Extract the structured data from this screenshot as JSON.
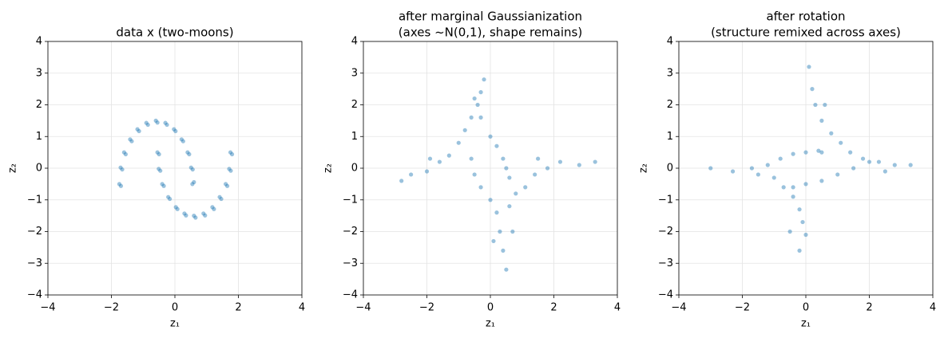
{
  "chart_data": [
    {
      "type": "scatter",
      "title": [
        "data x (two-moons)"
      ],
      "xlabel": "z₁",
      "ylabel": "z₂",
      "color": "#1f77b4",
      "grid": true,
      "xlim": [
        -4,
        4
      ],
      "ylim": [
        -4,
        4
      ],
      "xticks": [
        {
          "value": -4,
          "label": "−4"
        },
        {
          "value": -2,
          "label": "−2"
        },
        0,
        2,
        4
      ],
      "yticks": [
        {
          "value": -4,
          "label": "−4"
        },
        {
          "value": -3,
          "label": "−3"
        },
        {
          "value": -2,
          "label": "−2"
        },
        {
          "value": -1,
          "label": "−1"
        },
        0,
        1,
        2,
        3,
        4
      ],
      "x": [
        0.55,
        0.51,
        0.4,
        0.21,
        -0.03,
        -0.3,
        -0.6,
        -0.9,
        -1.18,
        -1.41,
        -1.6,
        -1.71,
        -1.75,
        0.6,
        0.56,
        0.45,
        0.26,
        0.02,
        -0.25,
        -0.55,
        -0.85,
        -1.13,
        -1.36,
        -1.55,
        -1.66,
        -1.7,
        -0.55,
        -0.51,
        -0.4,
        -0.21,
        0.03,
        0.3,
        0.6,
        0.9,
        1.18,
        1.41,
        1.6,
        1.71,
        1.75,
        -0.5,
        -0.46,
        -0.35,
        -0.16,
        0.08,
        0.35,
        0.65,
        0.95,
        1.23,
        1.46,
        1.65,
        1.76,
        1.8
      ],
      "y": [
        -0.5,
        0.02,
        0.5,
        0.91,
        1.23,
        1.43,
        1.5,
        1.43,
        1.23,
        0.91,
        0.5,
        0.02,
        -0.5,
        -0.44,
        -0.04,
        0.44,
        0.85,
        1.17,
        1.37,
        1.44,
        1.37,
        1.17,
        0.85,
        0.44,
        -0.04,
        -0.56,
        0.5,
        -0.02,
        -0.5,
        -0.91,
        -1.23,
        -1.43,
        -1.5,
        -1.43,
        -1.23,
        -0.91,
        -0.5,
        -0.02,
        0.5,
        0.44,
        -0.08,
        -0.56,
        -0.97,
        -1.29,
        -1.49,
        -1.56,
        -1.49,
        -1.29,
        -0.97,
        -0.56,
        -0.08,
        0.44
      ]
    },
    {
      "type": "scatter",
      "title": [
        "after marginal Gaussianization",
        "(axes ~N(0,1), shape remains)"
      ],
      "xlabel": "z₁",
      "ylabel": "z₂",
      "color": "#1f77b4",
      "grid": true,
      "xlim": [
        -4,
        4
      ],
      "ylim": [
        -4,
        4
      ],
      "xticks": [
        {
          "value": -4,
          "label": "−4"
        },
        {
          "value": -2,
          "label": "−2"
        },
        0,
        2,
        4
      ],
      "yticks": [
        {
          "value": -4,
          "label": "−4"
        },
        {
          "value": -3,
          "label": "−3"
        },
        {
          "value": -2,
          "label": "−2"
        },
        {
          "value": -1,
          "label": "−1"
        },
        0,
        1,
        2,
        3,
        4
      ],
      "x": [
        -2.5,
        -2.0,
        -1.6,
        -1.3,
        -1.0,
        -0.8,
        -0.6,
        -0.4,
        -0.3,
        -0.2,
        -0.3,
        0.0,
        0.2,
        0.4,
        0.5,
        0.6,
        -0.6,
        -0.5,
        -0.3,
        0.0,
        0.2,
        0.3,
        0.4,
        0.5,
        0.6,
        0.8,
        1.1,
        1.4,
        1.8,
        2.2,
        2.8,
        3.3,
        -2.8,
        -1.9,
        1.5,
        0.1,
        -0.5,
        0.7
      ],
      "y": [
        -0.2,
        -0.1,
        0.2,
        0.4,
        0.8,
        1.2,
        1.6,
        2.0,
        2.4,
        2.8,
        1.6,
        1.0,
        0.7,
        0.3,
        0.0,
        -0.3,
        0.3,
        -0.2,
        -0.6,
        -1.0,
        -1.4,
        -2.0,
        -2.6,
        -3.2,
        -1.2,
        -0.8,
        -0.6,
        -0.2,
        0.0,
        0.2,
        0.1,
        0.2,
        -0.4,
        0.3,
        0.3,
        -2.3,
        2.2,
        -2.0
      ]
    },
    {
      "type": "scatter",
      "title": [
        "after rotation",
        "(structure remixed across axes)"
      ],
      "xlabel": "z₁",
      "ylabel": "z₂",
      "color": "#1f77b4",
      "grid": true,
      "xlim": [
        -4,
        4
      ],
      "ylim": [
        -4,
        4
      ],
      "xticks": [
        {
          "value": -4,
          "label": "−4"
        },
        {
          "value": -2,
          "label": "−2"
        },
        0,
        2,
        4
      ],
      "yticks": [
        {
          "value": -4,
          "label": "−4"
        },
        {
          "value": -3,
          "label": "−3"
        },
        {
          "value": -2,
          "label": "−2"
        },
        {
          "value": -1,
          "label": "−1"
        },
        0,
        1,
        2,
        3,
        4
      ],
      "x": [
        0.1,
        0.2,
        0.3,
        0.5,
        0.8,
        1.1,
        1.4,
        1.8,
        2.3,
        2.8,
        3.3,
        -3.0,
        -2.3,
        -1.7,
        -1.2,
        -0.8,
        -0.4,
        0.0,
        0.4,
        0.5,
        -1.0,
        -0.7,
        -0.4,
        -0.2,
        -0.1,
        0.0,
        -0.2,
        -0.4,
        0.0,
        0.5,
        1.0,
        1.5,
        2.0,
        -1.5,
        0.6,
        2.5,
        -0.5
      ],
      "y": [
        3.2,
        2.5,
        2.0,
        1.5,
        1.1,
        0.8,
        0.5,
        0.3,
        0.2,
        0.1,
        0.1,
        0.0,
        -0.1,
        0.0,
        0.1,
        0.3,
        0.45,
        0.5,
        0.55,
        0.5,
        -0.3,
        -0.6,
        -0.9,
        -1.3,
        -1.7,
        -2.1,
        -2.6,
        -0.6,
        -0.5,
        -0.4,
        -0.2,
        0.0,
        0.2,
        -0.2,
        2.0,
        -0.1,
        -2.0
      ]
    }
  ]
}
